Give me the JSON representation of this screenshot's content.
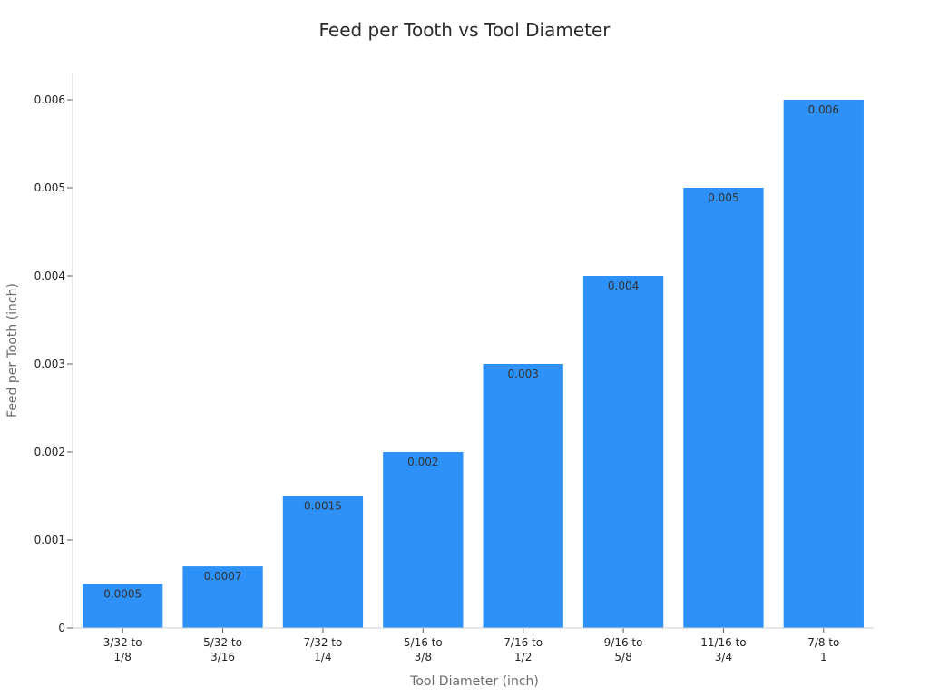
{
  "chart_data": {
    "type": "bar",
    "title": "Feed per Tooth vs Tool Diameter",
    "xlabel": "Tool Diameter (inch)",
    "ylabel": "Feed per Tooth (inch)",
    "categories": [
      [
        "3/32 to",
        "1/8"
      ],
      [
        "5/32 to",
        "3/16"
      ],
      [
        "7/32 to",
        "1/4"
      ],
      [
        "5/16 to",
        "3/8"
      ],
      [
        "7/16 to",
        "1/2"
      ],
      [
        "9/16 to",
        "5/8"
      ],
      [
        "11/16 to",
        "3/4"
      ],
      [
        "7/8 to",
        "1"
      ]
    ],
    "values": [
      0.0005,
      0.0007,
      0.0015,
      0.002,
      0.003,
      0.004,
      0.005,
      0.006
    ],
    "data_labels": [
      "0.0005",
      "0.0007",
      "0.0015",
      "0.002",
      "0.003",
      "0.004",
      "0.005",
      "0.006"
    ],
    "yticks": [
      0,
      0.001,
      0.002,
      0.003,
      0.004,
      0.005,
      0.006
    ],
    "ytick_labels": [
      "0",
      "0.001",
      "0.002",
      "0.003",
      "0.004",
      "0.005",
      "0.006"
    ],
    "ylim": [
      0,
      0.0063
    ],
    "grid": false,
    "bar_color": "#2d91f7"
  }
}
